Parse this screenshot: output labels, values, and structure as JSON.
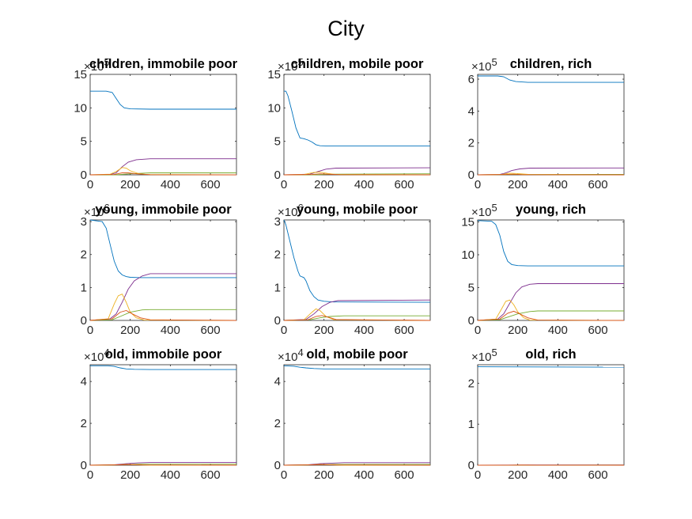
{
  "figure_title": "City",
  "chart_data": [
    {
      "type": "line",
      "title": "children, immobile poor",
      "xlim": [
        0,
        730
      ],
      "ylim": [
        0,
        15
      ],
      "xticks": [
        0,
        200,
        400,
        600
      ],
      "yticks": [
        0,
        5,
        10,
        15
      ],
      "y_exponent_label": "×10^5",
      "series": [
        {
          "color": "#0072BD",
          "x": [
            0,
            80,
            110,
            130,
            150,
            170,
            200,
            300,
            730
          ],
          "y": [
            12.5,
            12.5,
            12.3,
            11.4,
            10.5,
            10.0,
            9.85,
            9.8,
            9.8
          ]
        },
        {
          "color": "#7E2F8E",
          "x": [
            0,
            100,
            130,
            160,
            190,
            230,
            300,
            730
          ],
          "y": [
            0,
            0.05,
            0.3,
            1.2,
            1.9,
            2.25,
            2.4,
            2.4
          ]
        },
        {
          "color": "#77AC30",
          "x": [
            0,
            130,
            200,
            300,
            730
          ],
          "y": [
            0,
            0,
            0.15,
            0.3,
            0.3
          ]
        },
        {
          "color": "#EDB120",
          "x": [
            0,
            100,
            130,
            160,
            180,
            200,
            240,
            280,
            730
          ],
          "y": [
            0,
            0.1,
            0.5,
            1.1,
            1.0,
            0.6,
            0.2,
            0.05,
            0
          ]
        },
        {
          "color": "#D95319",
          "x": [
            0,
            120,
            160,
            190,
            230,
            300,
            730
          ],
          "y": [
            0,
            0.05,
            0.3,
            0.3,
            0.15,
            0.02,
            0
          ]
        }
      ]
    },
    {
      "type": "line",
      "title": "children, mobile poor",
      "xlim": [
        0,
        730
      ],
      "ylim": [
        0,
        15
      ],
      "xticks": [
        0,
        200,
        400,
        600
      ],
      "yticks": [
        0,
        5,
        10,
        15
      ],
      "y_exponent_label": "×10^5",
      "series": [
        {
          "color": "#0072BD",
          "x": [
            0,
            10,
            20,
            40,
            60,
            80,
            100,
            120,
            140,
            160,
            180,
            220,
            730
          ],
          "y": [
            12.5,
            12.5,
            11.8,
            9.5,
            7.0,
            5.5,
            5.4,
            5.2,
            4.9,
            4.5,
            4.35,
            4.3,
            4.3
          ]
        },
        {
          "color": "#7E2F8E",
          "x": [
            0,
            130,
            170,
            210,
            260,
            730
          ],
          "y": [
            0,
            0.1,
            0.5,
            0.85,
            1.0,
            1.05
          ]
        },
        {
          "color": "#77AC30",
          "x": [
            0,
            150,
            230,
            730
          ],
          "y": [
            0,
            0,
            0.1,
            0.15
          ]
        },
        {
          "color": "#EDB120",
          "x": [
            0,
            100,
            150,
            180,
            220,
            260,
            730
          ],
          "y": [
            0,
            0.05,
            0.35,
            0.4,
            0.2,
            0.05,
            0
          ]
        },
        {
          "color": "#D95319",
          "x": [
            0,
            140,
            180,
            220,
            280,
            730
          ],
          "y": [
            0,
            0.05,
            0.15,
            0.1,
            0.02,
            0
          ]
        }
      ]
    },
    {
      "type": "line",
      "title": "children, rich",
      "xlim": [
        0,
        730
      ],
      "ylim": [
        0,
        6.3
      ],
      "xticks": [
        0,
        200,
        400,
        600
      ],
      "yticks": [
        0,
        2,
        4,
        6
      ],
      "y_exponent_label": "×10^5",
      "series": [
        {
          "color": "#0072BD",
          "x": [
            0,
            100,
            130,
            160,
            190,
            250,
            730
          ],
          "y": [
            6.2,
            6.2,
            6.15,
            5.95,
            5.85,
            5.8,
            5.8
          ]
        },
        {
          "color": "#7E2F8E",
          "x": [
            0,
            110,
            140,
            170,
            210,
            260,
            730
          ],
          "y": [
            0,
            0.02,
            0.12,
            0.27,
            0.37,
            0.42,
            0.43
          ]
        },
        {
          "color": "#77AC30",
          "x": [
            0,
            170,
            730
          ],
          "y": [
            0,
            0.02,
            0.03
          ]
        },
        {
          "color": "#EDB120",
          "x": [
            0,
            120,
            160,
            200,
            260,
            730
          ],
          "y": [
            0,
            0.02,
            0.1,
            0.08,
            0.02,
            0
          ]
        },
        {
          "color": "#D95319",
          "x": [
            0,
            140,
            180,
            220,
            730
          ],
          "y": [
            0,
            0.02,
            0.04,
            0.01,
            0
          ]
        }
      ]
    },
    {
      "type": "line",
      "title": "young, immobile poor",
      "xlim": [
        0,
        730
      ],
      "ylim": [
        0,
        3.05
      ],
      "xticks": [
        0,
        200,
        400,
        600
      ],
      "yticks": [
        0,
        1,
        2,
        3
      ],
      "y_exponent_label": "×10^6",
      "series": [
        {
          "color": "#0072BD",
          "x": [
            0,
            60,
            80,
            100,
            120,
            140,
            160,
            180,
            200,
            250,
            730
          ],
          "y": [
            3.05,
            3.0,
            2.8,
            2.3,
            1.8,
            1.5,
            1.38,
            1.33,
            1.31,
            1.3,
            1.3
          ]
        },
        {
          "color": "#7E2F8E",
          "x": [
            0,
            100,
            130,
            160,
            190,
            220,
            260,
            300,
            730
          ],
          "y": [
            0,
            0.05,
            0.2,
            0.55,
            0.95,
            1.2,
            1.35,
            1.42,
            1.42
          ]
        },
        {
          "color": "#77AC30",
          "x": [
            0,
            110,
            150,
            200,
            260,
            300,
            730
          ],
          "y": [
            0,
            0.02,
            0.12,
            0.25,
            0.32,
            0.33,
            0.33
          ]
        },
        {
          "color": "#EDB120",
          "x": [
            0,
            90,
            120,
            140,
            160,
            180,
            200,
            230,
            270,
            730
          ],
          "y": [
            0,
            0.05,
            0.5,
            0.75,
            0.8,
            0.55,
            0.25,
            0.08,
            0.01,
            0
          ]
        },
        {
          "color": "#D95319",
          "x": [
            0,
            110,
            150,
            180,
            210,
            250,
            300,
            730
          ],
          "y": [
            0,
            0.05,
            0.25,
            0.3,
            0.2,
            0.08,
            0.02,
            0
          ]
        }
      ]
    },
    {
      "type": "line",
      "title": "young, mobile poor",
      "xlim": [
        0,
        730
      ],
      "ylim": [
        0,
        3.05
      ],
      "xticks": [
        0,
        200,
        400,
        600
      ],
      "yticks": [
        0,
        1,
        2,
        3
      ],
      "y_exponent_label": "×10^6",
      "series": [
        {
          "color": "#0072BD",
          "x": [
            0,
            10,
            30,
            50,
            70,
            80,
            100,
            110,
            130,
            150,
            170,
            200,
            250,
            730
          ],
          "y": [
            3.05,
            2.9,
            2.4,
            1.9,
            1.5,
            1.35,
            1.3,
            1.2,
            0.9,
            0.72,
            0.62,
            0.58,
            0.56,
            0.55
          ]
        },
        {
          "color": "#7E2F8E",
          "x": [
            0,
            110,
            150,
            190,
            230,
            270,
            730
          ],
          "y": [
            0,
            0.03,
            0.2,
            0.42,
            0.55,
            0.6,
            0.62
          ]
        },
        {
          "color": "#77AC30",
          "x": [
            0,
            130,
            180,
            230,
            300,
            730
          ],
          "y": [
            0,
            0.02,
            0.08,
            0.12,
            0.14,
            0.14
          ]
        },
        {
          "color": "#EDB120",
          "x": [
            0,
            100,
            140,
            160,
            180,
            210,
            250,
            730
          ],
          "y": [
            0,
            0.02,
            0.25,
            0.35,
            0.3,
            0.12,
            0.02,
            0
          ]
        },
        {
          "color": "#D95319",
          "x": [
            0,
            120,
            160,
            190,
            220,
            260,
            730
          ],
          "y": [
            0,
            0.02,
            0.12,
            0.15,
            0.1,
            0.03,
            0
          ]
        }
      ]
    },
    {
      "type": "line",
      "title": "young, rich",
      "xlim": [
        0,
        730
      ],
      "ylim": [
        0,
        15.3
      ],
      "xticks": [
        0,
        200,
        400,
        600
      ],
      "yticks": [
        0,
        5,
        10,
        15
      ],
      "y_exponent_label": "×10^5",
      "series": [
        {
          "color": "#0072BD",
          "x": [
            0,
            70,
            90,
            110,
            130,
            150,
            170,
            200,
            250,
            730
          ],
          "y": [
            15.2,
            15.1,
            14.6,
            13.0,
            10.5,
            9.0,
            8.5,
            8.35,
            8.3,
            8.3
          ]
        },
        {
          "color": "#7E2F8E",
          "x": [
            0,
            100,
            130,
            160,
            190,
            220,
            260,
            300,
            730
          ],
          "y": [
            0,
            0.2,
            1.0,
            2.6,
            4.2,
            5.1,
            5.5,
            5.6,
            5.6
          ]
        },
        {
          "color": "#77AC30",
          "x": [
            0,
            110,
            150,
            200,
            260,
            300,
            730
          ],
          "y": [
            0,
            0.1,
            0.5,
            1.0,
            1.35,
            1.45,
            1.45
          ]
        },
        {
          "color": "#EDB120",
          "x": [
            0,
            90,
            120,
            140,
            160,
            180,
            200,
            230,
            260,
            730
          ],
          "y": [
            0,
            0.2,
            1.8,
            2.9,
            3.1,
            2.4,
            1.3,
            0.4,
            0.05,
            0
          ]
        },
        {
          "color": "#D95319",
          "x": [
            0,
            110,
            150,
            180,
            210,
            250,
            300,
            730
          ],
          "y": [
            0,
            0.2,
            1.1,
            1.4,
            1.0,
            0.4,
            0.05,
            0
          ]
        }
      ]
    },
    {
      "type": "line",
      "title": "old, immobile poor",
      "xlim": [
        0,
        730
      ],
      "ylim": [
        0,
        4.8
      ],
      "xticks": [
        0,
        200,
        400,
        600
      ],
      "yticks": [
        0,
        2,
        4
      ],
      "y_exponent_label": "×10^4",
      "series": [
        {
          "color": "#0072BD",
          "x": [
            0,
            90,
            120,
            150,
            180,
            220,
            300,
            730
          ],
          "y": [
            4.75,
            4.75,
            4.72,
            4.65,
            4.6,
            4.58,
            4.57,
            4.57
          ]
        },
        {
          "color": "#7E2F8E",
          "x": [
            0,
            120,
            180,
            240,
            300,
            730
          ],
          "y": [
            0,
            0.02,
            0.07,
            0.11,
            0.13,
            0.13
          ]
        },
        {
          "color": "#77AC30",
          "x": [
            0,
            150,
            250,
            730
          ],
          "y": [
            0,
            0.02,
            0.05,
            0.05
          ]
        },
        {
          "color": "#EDB120",
          "x": [
            0,
            120,
            180,
            230,
            300,
            730
          ],
          "y": [
            0,
            0.01,
            0.04,
            0.02,
            0,
            0
          ]
        },
        {
          "color": "#D95319",
          "x": [
            0,
            150,
            200,
            260,
            730
          ],
          "y": [
            0,
            0.02,
            0.03,
            0.01,
            0
          ]
        }
      ]
    },
    {
      "type": "line",
      "title": "old, mobile poor",
      "xlim": [
        0,
        730
      ],
      "ylim": [
        0,
        4.8
      ],
      "xticks": [
        0,
        200,
        400,
        600
      ],
      "yticks": [
        0,
        2,
        4
      ],
      "y_exponent_label": "×10^4",
      "series": [
        {
          "color": "#0072BD",
          "x": [
            0,
            50,
            80,
            110,
            150,
            200,
            300,
            730
          ],
          "y": [
            4.75,
            4.73,
            4.68,
            4.65,
            4.62,
            4.6,
            4.6,
            4.6
          ]
        },
        {
          "color": "#7E2F8E",
          "x": [
            0,
            120,
            180,
            240,
            300,
            730
          ],
          "y": [
            0,
            0.02,
            0.07,
            0.1,
            0.12,
            0.12
          ]
        },
        {
          "color": "#77AC30",
          "x": [
            0,
            150,
            250,
            730
          ],
          "y": [
            0,
            0.02,
            0.04,
            0.04
          ]
        },
        {
          "color": "#EDB120",
          "x": [
            0,
            120,
            180,
            230,
            300,
            730
          ],
          "y": [
            0,
            0.01,
            0.04,
            0.02,
            0,
            0
          ]
        },
        {
          "color": "#D95319",
          "x": [
            0,
            150,
            200,
            260,
            730
          ],
          "y": [
            0,
            0.02,
            0.03,
            0.01,
            0
          ]
        }
      ]
    },
    {
      "type": "line",
      "title": "old, rich",
      "xlim": [
        0,
        730
      ],
      "ylim": [
        0,
        2.45
      ],
      "xticks": [
        0,
        200,
        400,
        600
      ],
      "yticks": [
        0,
        1,
        2
      ],
      "y_exponent_label": "×10^5",
      "series": [
        {
          "color": "#0072BD",
          "x": [
            0,
            730
          ],
          "y": [
            2.4,
            2.39
          ]
        },
        {
          "color": "#7E2F8E",
          "x": [
            0,
            150,
            250,
            730
          ],
          "y": [
            0,
            0.003,
            0.006,
            0.006
          ]
        },
        {
          "color": "#77AC30",
          "x": [
            0,
            200,
            730
          ],
          "y": [
            0,
            0.002,
            0.003
          ]
        },
        {
          "color": "#EDB120",
          "x": [
            0,
            150,
            200,
            300,
            730
          ],
          "y": [
            0,
            0.002,
            0.003,
            0.001,
            0
          ]
        },
        {
          "color": "#D95319",
          "x": [
            0,
            170,
            220,
            300,
            730
          ],
          "y": [
            0,
            0.002,
            0.003,
            0.001,
            0
          ]
        }
      ]
    }
  ]
}
